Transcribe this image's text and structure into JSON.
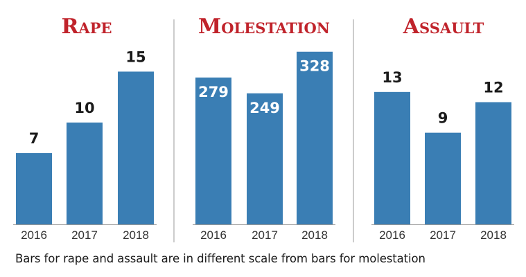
{
  "chart_data": [
    {
      "type": "bar",
      "title": "Rape",
      "categories": [
        "2016",
        "2017",
        "2018"
      ],
      "values": [
        7,
        10,
        15
      ],
      "value_labels": [
        "7",
        "10",
        "15"
      ],
      "ylim": [
        0,
        17
      ]
    },
    {
      "type": "bar",
      "title": "Molestation",
      "categories": [
        "2016",
        "2017",
        "2018"
      ],
      "values": [
        279,
        249,
        328
      ],
      "value_labels": [
        "279",
        "249",
        "328"
      ],
      "ylim": [
        0,
        350
      ]
    },
    {
      "type": "bar",
      "title": "Assault",
      "categories": [
        "2016",
        "2017",
        "2018"
      ],
      "values": [
        13,
        9,
        12
      ],
      "value_labels": [
        "13",
        "9",
        "12"
      ],
      "ylim": [
        0,
        17
      ]
    }
  ],
  "footnote": "Bars for rape and assault are in different scale from bars for molestation",
  "colors": {
    "bar": "#3a7eb4",
    "title": "#c0232b",
    "label_dark": "#1a1a1a",
    "label_light": "#ffffff",
    "divider": "#9a9a9a",
    "baseline": "#7a7a7a"
  }
}
